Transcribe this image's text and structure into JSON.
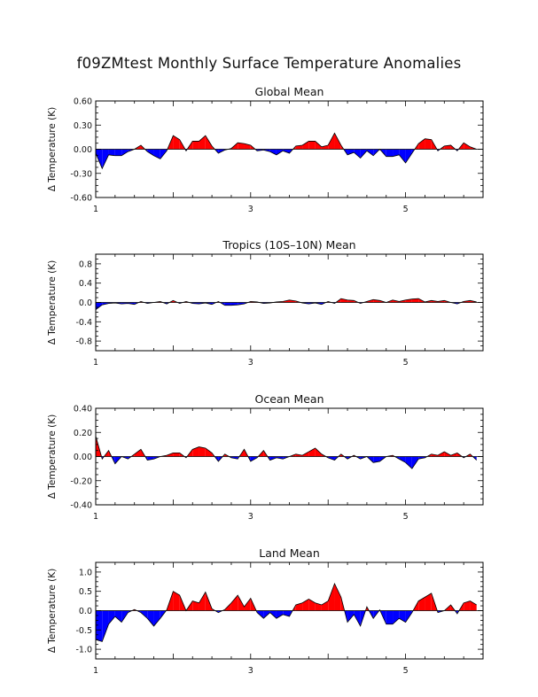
{
  "title": "f09ZMtest Monthly Surface Temperature Anomalies",
  "colors": {
    "positive": "#ff0000",
    "negative": "#0000ff",
    "axis": "#000000"
  },
  "chart_data": [
    {
      "type": "area",
      "title": "Global Mean",
      "xlabel": "",
      "ylabel": "Δ Temperature (K)",
      "xlim": [
        1,
        6
      ],
      "ylim": [
        -0.6,
        0.6
      ],
      "xticks": [
        "1",
        "3",
        "5"
      ],
      "yticks": [
        "0.60",
        "0.30",
        "0.00",
        "-0.30",
        "-0.60"
      ],
      "grid": false,
      "series": [
        {
          "values": [
            -0.05,
            -0.24,
            -0.07,
            -0.08,
            -0.08,
            -0.03,
            0.0,
            0.05,
            -0.03,
            -0.08,
            -0.12,
            -0.02,
            0.17,
            0.12,
            -0.02,
            0.1,
            0.1,
            0.17,
            0.04,
            -0.05,
            -0.01,
            0.01,
            0.08,
            0.07,
            0.05,
            -0.02,
            -0.01,
            -0.03,
            -0.07,
            -0.02,
            -0.05,
            0.04,
            0.05,
            0.1,
            0.1,
            0.03,
            0.05,
            0.2,
            0.05,
            -0.07,
            -0.04,
            -0.11,
            -0.02,
            -0.08,
            0.0,
            -0.09,
            -0.09,
            -0.07,
            -0.17,
            -0.05,
            0.07,
            0.13,
            0.12,
            -0.02,
            0.04,
            0.05,
            -0.02,
            0.08,
            0.03,
            0.0
          ]
        }
      ]
    },
    {
      "type": "area",
      "title": "Tropics (10S–10N) Mean",
      "xlabel": "",
      "ylabel": "Δ Temperature (K)",
      "xlim": [
        1,
        6
      ],
      "ylim": [
        -1.0,
        1.0
      ],
      "xticks": [
        "1",
        "3",
        "5"
      ],
      "yticks": [
        "0.8",
        "0.4",
        "0.0",
        "-0.4",
        "-0.8"
      ],
      "grid": false,
      "series": [
        {
          "values": [
            -0.15,
            -0.05,
            -0.02,
            -0.01,
            -0.03,
            -0.02,
            -0.04,
            0.02,
            -0.02,
            0.0,
            0.02,
            -0.03,
            0.04,
            -0.02,
            0.02,
            -0.02,
            -0.03,
            -0.01,
            -0.04,
            0.02,
            -0.06,
            -0.06,
            -0.05,
            -0.03,
            0.02,
            0.01,
            -0.02,
            -0.01,
            0.01,
            0.02,
            0.05,
            0.03,
            -0.01,
            -0.03,
            -0.01,
            -0.04,
            0.02,
            -0.02,
            0.08,
            0.05,
            0.04,
            -0.02,
            0.02,
            0.06,
            0.04,
            0.0,
            0.05,
            0.02,
            0.05,
            0.07,
            0.08,
            0.01,
            0.04,
            0.02,
            0.04,
            0.0,
            -0.03,
            0.02,
            0.04,
            0.01
          ]
        }
      ]
    },
    {
      "type": "area",
      "title": "Ocean Mean",
      "xlabel": "",
      "ylabel": "Δ Temperature (K)",
      "xlim": [
        1,
        6
      ],
      "ylim": [
        -0.4,
        0.4
      ],
      "xticks": [
        "1",
        "3",
        "5"
      ],
      "yticks": [
        "0.40",
        "0.20",
        "0.00",
        "-0.20",
        "-0.40"
      ],
      "grid": false,
      "series": [
        {
          "values": [
            0.17,
            -0.02,
            0.05,
            -0.06,
            0.0,
            -0.02,
            0.02,
            0.06,
            -0.03,
            -0.02,
            0.0,
            0.01,
            0.03,
            0.03,
            -0.01,
            0.06,
            0.08,
            0.07,
            0.03,
            -0.04,
            0.02,
            -0.01,
            -0.02,
            0.06,
            -0.04,
            -0.01,
            0.05,
            -0.03,
            -0.01,
            -0.02,
            0.0,
            0.02,
            0.01,
            0.04,
            0.07,
            0.02,
            -0.01,
            -0.03,
            0.02,
            -0.02,
            0.01,
            -0.02,
            0.0,
            -0.05,
            -0.04,
            0.0,
            0.01,
            -0.02,
            -0.05,
            -0.1,
            -0.02,
            -0.01,
            0.02,
            0.01,
            0.04,
            0.01,
            0.03,
            -0.01,
            0.02,
            -0.03
          ]
        }
      ]
    },
    {
      "type": "area",
      "title": "Land Mean",
      "xlabel": "",
      "ylabel": "Δ Temperature (K)",
      "xlim": [
        1,
        6
      ],
      "ylim": [
        -1.25,
        1.25
      ],
      "xticks": [
        "1",
        "3",
        "5"
      ],
      "yticks": [
        "1.0",
        "0.5",
        "0.0",
        "-0.5",
        "-1.0"
      ],
      "grid": false,
      "series": [
        {
          "values": [
            -0.75,
            -0.8,
            -0.35,
            -0.15,
            -0.3,
            -0.05,
            0.03,
            -0.05,
            -0.2,
            -0.4,
            -0.2,
            0.02,
            0.5,
            0.4,
            0.0,
            0.25,
            0.2,
            0.48,
            0.05,
            -0.05,
            0.03,
            0.2,
            0.4,
            0.1,
            0.32,
            -0.05,
            -0.2,
            -0.05,
            -0.2,
            -0.1,
            -0.15,
            0.15,
            0.2,
            0.3,
            0.2,
            0.15,
            0.25,
            0.7,
            0.35,
            -0.3,
            -0.1,
            -0.4,
            0.1,
            -0.2,
            0.02,
            -0.35,
            -0.35,
            -0.2,
            -0.3,
            -0.05,
            0.25,
            0.35,
            0.45,
            -0.05,
            0.0,
            0.15,
            -0.08,
            0.2,
            0.25,
            0.15
          ]
        }
      ]
    }
  ]
}
